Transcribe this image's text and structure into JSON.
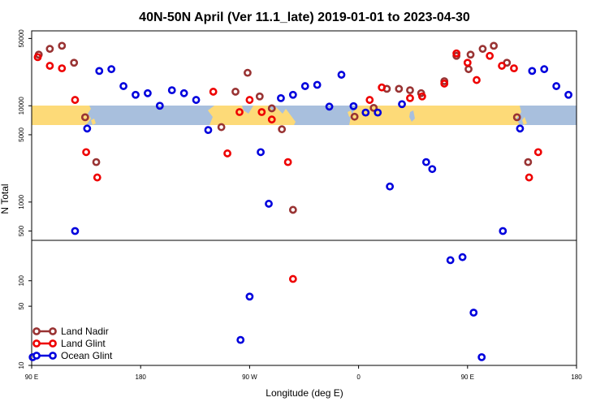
{
  "chart_data": {
    "type": "scatter",
    "title": "40N-50N April (Ver 11.1_late)   2019-01-01 to 2023-04-30",
    "xlabel": "Longitude (deg E)",
    "ylabel": "N Total",
    "xlim": [
      90,
      360
    ],
    "ylim_upper": [
      400,
      60000
    ],
    "ylim_lower": [
      10,
      300
    ],
    "x_ticks": [
      {
        "value": 90,
        "label": "90 E"
      },
      {
        "value": 144,
        "label": "180"
      },
      {
        "value": 198,
        "label": "90 W"
      },
      {
        "value": 252,
        "label": "0"
      },
      {
        "value": 306,
        "label": "90 E"
      },
      {
        "value": 360,
        "label": "180"
      }
    ],
    "y_ticks_upper": [
      {
        "value": 500,
        "label": "500"
      },
      {
        "value": 1000,
        "label": "1000"
      },
      {
        "value": 5000,
        "label": "5000"
      },
      {
        "value": 10000,
        "label": "10000"
      },
      {
        "value": 50000,
        "label": "50000"
      }
    ],
    "y_ticks_lower": [
      {
        "value": 10,
        "label": "10"
      },
      {
        "value": 50,
        "label": "50"
      },
      {
        "value": 100,
        "label": "100"
      }
    ],
    "map_strip": {
      "lat_range": "40N-50N",
      "ocean_color": "#a8bfdd",
      "land_color": "#fdda78"
    },
    "series": [
      {
        "name": "Land Nadir",
        "color": "#993333",
        "points": [
          {
            "x": 93.5,
            "y": 34000
          },
          {
            "x": 99,
            "y": 39000
          },
          {
            "x": 105,
            "y": 42000
          },
          {
            "x": 111,
            "y": 28000
          },
          {
            "x": 116.5,
            "y": 7600
          },
          {
            "x": 122,
            "y": 2600
          },
          {
            "x": 184,
            "y": 6000
          },
          {
            "x": 191,
            "y": 14000
          },
          {
            "x": 197,
            "y": 22000
          },
          {
            "x": 203,
            "y": 12500
          },
          {
            "x": 209,
            "y": 9400
          },
          {
            "x": 214,
            "y": 5700
          },
          {
            "x": 219.5,
            "y": 830
          },
          {
            "x": 250,
            "y": 7700
          },
          {
            "x": 259.5,
            "y": 9500
          },
          {
            "x": 266,
            "y": 15000
          },
          {
            "x": 272,
            "y": 15000
          },
          {
            "x": 277.5,
            "y": 14500
          },
          {
            "x": 283,
            "y": 13500
          },
          {
            "x": 294.5,
            "y": 18000
          },
          {
            "x": 300.5,
            "y": 33000
          },
          {
            "x": 306.5,
            "y": 24000
          },
          {
            "x": 307.5,
            "y": 34000
          },
          {
            "x": 313.5,
            "y": 39000
          },
          {
            "x": 319,
            "y": 42000
          },
          {
            "x": 325.5,
            "y": 28000
          },
          {
            "x": 330.5,
            "y": 7600
          },
          {
            "x": 336,
            "y": 2600
          }
        ]
      },
      {
        "name": "Land Glint",
        "color": "#ee0000",
        "points": [
          {
            "x": 93,
            "y": 32000
          },
          {
            "x": 99,
            "y": 26000
          },
          {
            "x": 105,
            "y": 24500
          },
          {
            "x": 111.5,
            "y": 11500
          },
          {
            "x": 117,
            "y": 3300
          },
          {
            "x": 122.5,
            "y": 1800
          },
          {
            "x": 180,
            "y": 14000
          },
          {
            "x": 187,
            "y": 3200
          },
          {
            "x": 193,
            "y": 8600
          },
          {
            "x": 198,
            "y": 11500
          },
          {
            "x": 204,
            "y": 8600
          },
          {
            "x": 209,
            "y": 7200
          },
          {
            "x": 217,
            "y": 2600
          },
          {
            "x": 219.5,
            "y": 105
          },
          {
            "x": 257.5,
            "y": 11500
          },
          {
            "x": 263.5,
            "y": 15500
          },
          {
            "x": 277.5,
            "y": 12000
          },
          {
            "x": 283.5,
            "y": 12500
          },
          {
            "x": 294.5,
            "y": 17000
          },
          {
            "x": 300.5,
            "y": 35000
          },
          {
            "x": 306,
            "y": 28000
          },
          {
            "x": 310.5,
            "y": 18500
          },
          {
            "x": 317,
            "y": 33000
          },
          {
            "x": 323,
            "y": 26000
          },
          {
            "x": 329,
            "y": 24500
          },
          {
            "x": 336.5,
            "y": 1800
          },
          {
            "x": 341,
            "y": 3300
          }
        ]
      },
      {
        "name": "Ocean Glint",
        "color": "#0000dd",
        "points": [
          {
            "x": 90.5,
            "y": 12.5
          },
          {
            "x": 111.5,
            "y": 500
          },
          {
            "x": 117.5,
            "y": 5800
          },
          {
            "x": 123.5,
            "y": 23000
          },
          {
            "x": 129.5,
            "y": 24000
          },
          {
            "x": 135.5,
            "y": 16000
          },
          {
            "x": 141.5,
            "y": 13000
          },
          {
            "x": 147.5,
            "y": 13500
          },
          {
            "x": 153.5,
            "y": 10000
          },
          {
            "x": 159.5,
            "y": 14500
          },
          {
            "x": 165.5,
            "y": 13500
          },
          {
            "x": 171.5,
            "y": 11500
          },
          {
            "x": 177.5,
            "y": 5600
          },
          {
            "x": 193.5,
            "y": 20
          },
          {
            "x": 198,
            "y": 65
          },
          {
            "x": 203.5,
            "y": 3300
          },
          {
            "x": 207.5,
            "y": 960
          },
          {
            "x": 213.5,
            "y": 12000
          },
          {
            "x": 219.5,
            "y": 13000
          },
          {
            "x": 225.5,
            "y": 16000
          },
          {
            "x": 231.5,
            "y": 16500
          },
          {
            "x": 237.5,
            "y": 9800
          },
          {
            "x": 243.5,
            "y": 21000
          },
          {
            "x": 249.5,
            "y": 9900
          },
          {
            "x": 255.5,
            "y": 8500
          },
          {
            "x": 261.5,
            "y": 8500
          },
          {
            "x": 267.5,
            "y": 1450
          },
          {
            "x": 273.5,
            "y": 10400
          },
          {
            "x": 285.5,
            "y": 2600
          },
          {
            "x": 288.5,
            "y": 2200
          },
          {
            "x": 297.5,
            "y": 175
          },
          {
            "x": 303.5,
            "y": 190
          },
          {
            "x": 309,
            "y": 42
          },
          {
            "x": 313,
            "y": 12.5
          },
          {
            "x": 323.5,
            "y": 500
          },
          {
            "x": 332,
            "y": 5800
          },
          {
            "x": 338,
            "y": 23000
          },
          {
            "x": 344,
            "y": 24000
          },
          {
            "x": 350,
            "y": 16000
          },
          {
            "x": 356,
            "y": 13000
          }
        ]
      }
    ],
    "legend": {
      "position": "bottom-left",
      "entries": [
        "Land Nadir",
        "Land Glint",
        "Ocean Glint"
      ]
    }
  }
}
